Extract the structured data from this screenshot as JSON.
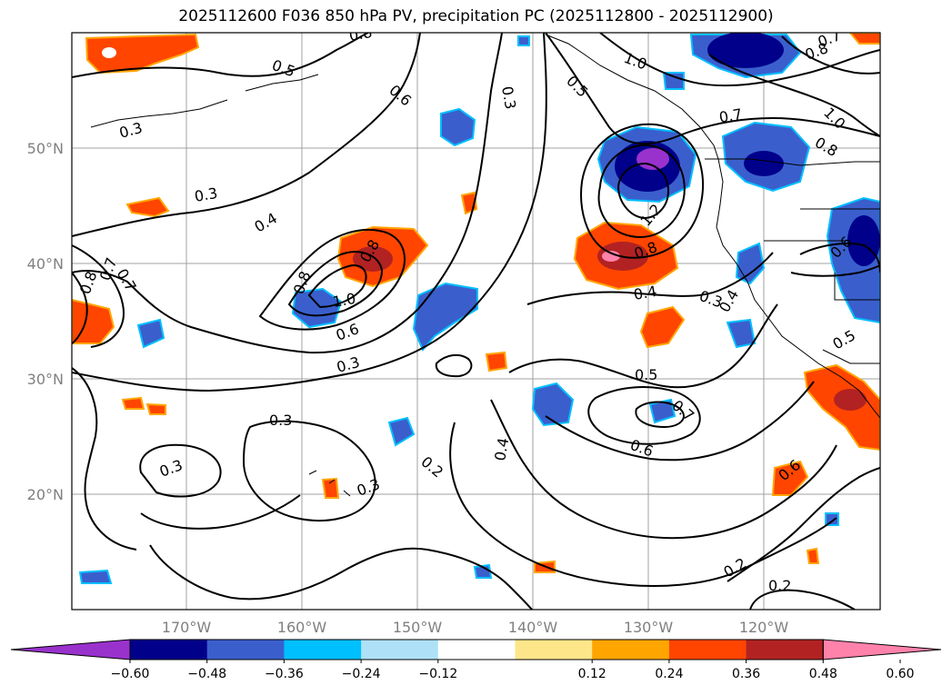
{
  "title": "2025112600 F036 850 hPa PV, precipitation PC (2025112800 - 2025112900)",
  "map": {
    "lat_ticks": [
      "50°N",
      "40°N",
      "30°N",
      "20°N"
    ],
    "lon_ticks": [
      "170°W",
      "160°W",
      "150°W",
      "140°W",
      "130°W",
      "120°W"
    ]
  },
  "colorbar": {
    "colors": [
      "#9932cc",
      "#00008b",
      "#3a5fcd",
      "#00bfff",
      "#aee1f8",
      "#ffffff",
      "#fde68a",
      "#ffa500",
      "#ff4500",
      "#b22222",
      "#ff82ab"
    ],
    "tick_labels": [
      "−0.60",
      "−0.48",
      "−0.36",
      "−0.24",
      "−0.12",
      "0.12",
      "0.24",
      "0.36",
      "0.48",
      "0.60"
    ]
  },
  "contour_labels": [
    "0.5",
    "0.6",
    "0.3",
    "0.7",
    "0.8",
    "1.0",
    "0.3",
    "0.3",
    "0.4",
    "0.8",
    "1.0",
    "0.8",
    "0.7",
    "0.8",
    "0.6",
    "0.3",
    "0.3",
    "0.2",
    "0.3",
    "0.3",
    "0.4",
    "0.5",
    "0.7",
    "0.6",
    "0.6",
    "0.2",
    "0.2",
    "0.4",
    "0.3",
    "0.8",
    "1.2",
    "0.5",
    "0.8",
    "1.0",
    "0.8",
    "0.7",
    "0.6",
    "0.5",
    "0.4",
    "0.7"
  ]
}
